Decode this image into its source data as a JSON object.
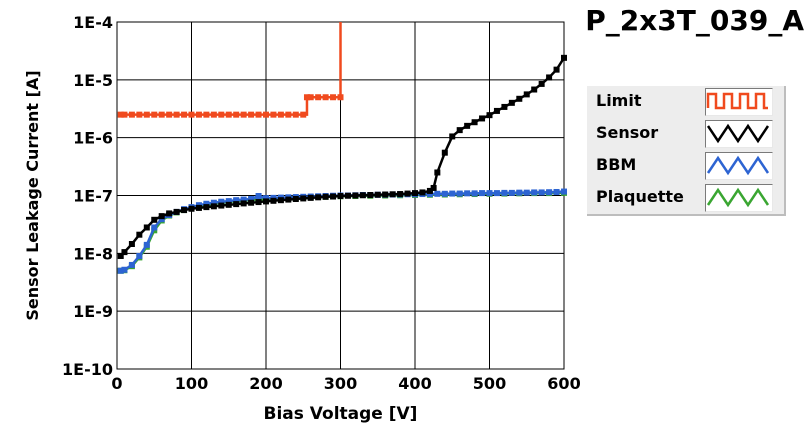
{
  "title": "P_2x3T_039_A",
  "colors": {
    "limit": "#f04a1e",
    "sensor": "#000000",
    "bbm": "#2d64d2",
    "plaquette": "#3aa632",
    "grid": "#000000",
    "plot_bg": "#ffffff"
  },
  "legend": [
    {
      "name": "Limit",
      "color": "#f04a1e",
      "icon": "square-wave-icon"
    },
    {
      "name": "Sensor",
      "color": "#000000",
      "icon": "triangle-wave-icon"
    },
    {
      "name": "BBM",
      "color": "#2d64d2",
      "icon": "triangle-wave-icon"
    },
    {
      "name": "Plaquette",
      "color": "#3aa632",
      "icon": "triangle-wave-icon"
    }
  ],
  "chart_data": {
    "type": "line",
    "title": "P_2x3T_039_A",
    "xlabel": "Bias Voltage [V]",
    "ylabel": "Sensor Leakage Current [A]",
    "xlim": [
      0,
      600
    ],
    "ylim": [
      1e-10,
      0.0001
    ],
    "y_scale": "log",
    "grid": true,
    "legend_position": "right",
    "x_ticks": [
      0,
      100,
      200,
      300,
      400,
      500,
      600
    ],
    "y_ticks": [
      1e-10,
      1e-09,
      1e-08,
      1e-07,
      1e-06,
      1e-05,
      0.0001
    ],
    "y_tick_labels": [
      "1E-10",
      "1E-9",
      "1E-8",
      "1E-7",
      "1E-6",
      "1E-5",
      "1E-4"
    ],
    "series": [
      {
        "name": "Limit",
        "color": "#f04a1e",
        "step": true,
        "x": [
          5,
          10,
          20,
          30,
          40,
          50,
          60,
          70,
          80,
          90,
          100,
          110,
          120,
          130,
          140,
          150,
          160,
          170,
          180,
          190,
          200,
          210,
          220,
          230,
          240,
          250,
          255,
          260,
          270,
          280,
          290,
          300,
          300
        ],
        "y": [
          2.5e-06,
          2.5e-06,
          2.5e-06,
          2.5e-06,
          2.5e-06,
          2.5e-06,
          2.5e-06,
          2.5e-06,
          2.5e-06,
          2.5e-06,
          2.5e-06,
          2.5e-06,
          2.5e-06,
          2.5e-06,
          2.5e-06,
          2.5e-06,
          2.5e-06,
          2.5e-06,
          2.5e-06,
          2.5e-06,
          2.5e-06,
          2.5e-06,
          2.5e-06,
          2.5e-06,
          2.5e-06,
          2.5e-06,
          5e-06,
          5e-06,
          5e-06,
          5e-06,
          5e-06,
          5e-06,
          0.0001
        ]
      },
      {
        "name": "Sensor",
        "color": "#000000",
        "x": [
          5,
          10,
          20,
          30,
          40,
          50,
          60,
          70,
          80,
          90,
          100,
          110,
          120,
          130,
          140,
          150,
          160,
          170,
          180,
          190,
          200,
          210,
          220,
          230,
          240,
          250,
          260,
          270,
          280,
          290,
          300,
          310,
          320,
          330,
          340,
          350,
          360,
          370,
          380,
          390,
          400,
          410,
          420,
          425,
          430,
          440,
          450,
          460,
          470,
          480,
          490,
          500,
          510,
          520,
          530,
          540,
          550,
          560,
          570,
          580,
          590,
          600
        ],
        "y": [
          9e-09,
          1.05e-08,
          1.45e-08,
          2.1e-08,
          2.8e-08,
          3.8e-08,
          4.4e-08,
          4.9e-08,
          5.2e-08,
          5.6e-08,
          5.9e-08,
          6.1e-08,
          6.3e-08,
          6.5e-08,
          6.7e-08,
          6.9e-08,
          7.1e-08,
          7.3e-08,
          7.5e-08,
          7.7e-08,
          7.9e-08,
          8.1e-08,
          8.3e-08,
          8.5e-08,
          8.7e-08,
          8.9e-08,
          9.1e-08,
          9.3e-08,
          9.5e-08,
          9.6e-08,
          9.8e-08,
          9.9e-08,
          1e-07,
          1.01e-07,
          1.02e-07,
          1.03e-07,
          1.04e-07,
          1.05e-07,
          1.06e-07,
          1.08e-07,
          1.1e-07,
          1.13e-07,
          1.2e-07,
          1.35e-07,
          2.5e-07,
          5.5e-07,
          1.05e-06,
          1.35e-06,
          1.6e-06,
          1.85e-06,
          2.15e-06,
          2.45e-06,
          2.9e-06,
          3.4e-06,
          4e-06,
          4.7e-06,
          5.6e-06,
          6.8e-06,
          8.5e-06,
          1.1e-05,
          1.5e-05,
          2.4e-05
        ]
      },
      {
        "name": "BBM",
        "color": "#2d64d2",
        "x": [
          5,
          10,
          20,
          30,
          40,
          50,
          60,
          70,
          80,
          90,
          100,
          110,
          120,
          130,
          140,
          150,
          160,
          170,
          180,
          190,
          200,
          210,
          220,
          230,
          240,
          250,
          260,
          270,
          280,
          290,
          300,
          310,
          320,
          330,
          340,
          350,
          360,
          370,
          380,
          390,
          400,
          410,
          420,
          430,
          440,
          450,
          460,
          470,
          480,
          490,
          500,
          510,
          520,
          530,
          540,
          550,
          560,
          570,
          580,
          590,
          600
        ],
        "y": [
          5e-09,
          5.2e-09,
          6.3e-09,
          9e-09,
          1.4e-08,
          2.8e-08,
          3.9e-08,
          4.6e-08,
          5.2e-08,
          5.8e-08,
          6.3e-08,
          6.8e-08,
          7.2e-08,
          7.5e-08,
          7.8e-08,
          8e-08,
          8.3e-08,
          8.5e-08,
          8.7e-08,
          9.8e-08,
          9e-08,
          9.1e-08,
          9.2e-08,
          9.3e-08,
          9.4e-08,
          9.5e-08,
          9.6e-08,
          9.7e-08,
          9.8e-08,
          9.9e-08,
          1e-07,
          1e-07,
          1.01e-07,
          1.02e-07,
          1.02e-07,
          1.03e-07,
          1.03e-07,
          1.04e-07,
          1.04e-07,
          1.05e-07,
          1.05e-07,
          1.06e-07,
          1.06e-07,
          1.07e-07,
          1.07e-07,
          1.08e-07,
          1.08e-07,
          1.09e-07,
          1.09e-07,
          1.1e-07,
          1.1e-07,
          1.1e-07,
          1.11e-07,
          1.11e-07,
          1.12e-07,
          1.12e-07,
          1.13e-07,
          1.13e-07,
          1.14e-07,
          1.15e-07,
          1.17e-07
        ]
      },
      {
        "name": "Plaquette",
        "color": "#3aa632",
        "x": [
          5,
          10,
          20,
          30,
          40,
          50,
          60,
          70,
          80,
          90,
          100,
          120,
          140,
          160,
          180,
          200,
          220,
          240,
          260,
          280,
          300,
          320,
          340,
          360,
          380,
          400,
          420,
          440,
          460,
          480,
          500,
          520,
          540,
          560,
          580,
          600
        ],
        "y": [
          5e-09,
          5.1e-09,
          6e-09,
          8.5e-09,
          1.3e-08,
          2.5e-08,
          3.7e-08,
          4.5e-08,
          5.1e-08,
          5.6e-08,
          6.1e-08,
          6.9e-08,
          7.5e-08,
          8e-08,
          8.4e-08,
          8.7e-08,
          8.9e-08,
          9.1e-08,
          9.3e-08,
          9.5e-08,
          9.7e-08,
          9.8e-08,
          9.9e-08,
          1e-07,
          1.01e-07,
          1.02e-07,
          1.03e-07,
          1.04e-07,
          1.05e-07,
          1.06e-07,
          1.07e-07,
          1.08e-07,
          1.09e-07,
          1.1e-07,
          1.1e-07,
          1.11e-07
        ]
      }
    ]
  }
}
